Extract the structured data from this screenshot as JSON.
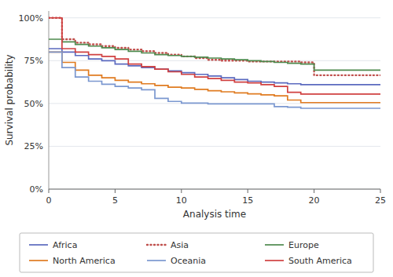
{
  "chart_data": {
    "type": "step",
    "xlabel": "Analysis time",
    "ylabel": "Survival probability",
    "xlim": [
      0,
      25
    ],
    "ylim": [
      0.0,
      1.04
    ],
    "xticks": [
      0,
      5,
      10,
      15,
      20,
      25
    ],
    "yticks": [
      {
        "value": 0.0,
        "label": "0%"
      },
      {
        "value": 0.25,
        "label": "25%"
      },
      {
        "value": 0.5,
        "label": "50%"
      },
      {
        "value": 0.75,
        "label": "75%"
      },
      {
        "value": 1.0,
        "label": "100%"
      }
    ],
    "grid": true,
    "legend": "bottom",
    "x": [
      0,
      1,
      2,
      3,
      4,
      5,
      6,
      7,
      8,
      9,
      10,
      11,
      12,
      13,
      14,
      15,
      16,
      17,
      18,
      19,
      20,
      25
    ],
    "series": [
      {
        "name": "Africa",
        "color": "#5b6abf",
        "line_style": "solid",
        "values": [
          0.82,
          0.8,
          0.78,
          0.76,
          0.75,
          0.73,
          0.72,
          0.71,
          0.7,
          0.69,
          0.68,
          0.67,
          0.66,
          0.65,
          0.64,
          0.63,
          0.625,
          0.62,
          0.615,
          0.61,
          0.61,
          0.61
        ]
      },
      {
        "name": "Asia",
        "color": "#c0504d",
        "line_style": "dotted",
        "values": [
          1.0,
          0.875,
          0.855,
          0.845,
          0.835,
          0.825,
          0.815,
          0.805,
          0.795,
          0.785,
          0.775,
          0.765,
          0.755,
          0.75,
          0.75,
          0.745,
          0.745,
          0.745,
          0.745,
          0.74,
          0.665,
          0.665
        ]
      },
      {
        "name": "Europe",
        "color": "#4e8a4e",
        "line_style": "solid",
        "values": [
          0.875,
          0.86,
          0.845,
          0.835,
          0.825,
          0.815,
          0.805,
          0.795,
          0.785,
          0.78,
          0.775,
          0.77,
          0.765,
          0.76,
          0.755,
          0.75,
          0.745,
          0.74,
          0.735,
          0.73,
          0.695,
          0.695
        ]
      },
      {
        "name": "North America",
        "color": "#e07b20",
        "line_style": "solid",
        "values": [
          0.8,
          0.74,
          0.695,
          0.665,
          0.65,
          0.635,
          0.625,
          0.615,
          0.605,
          0.595,
          0.59,
          0.582,
          0.574,
          0.568,
          0.562,
          0.556,
          0.55,
          0.545,
          0.52,
          0.505,
          0.505,
          0.505
        ]
      },
      {
        "name": "Oceania",
        "color": "#7b98d0",
        "line_style": "solid",
        "values": [
          0.8,
          0.71,
          0.655,
          0.63,
          0.612,
          0.6,
          0.59,
          0.58,
          0.53,
          0.512,
          0.502,
          0.502,
          0.498,
          0.498,
          0.498,
          0.498,
          0.498,
          0.482,
          0.478,
          0.472,
          0.472,
          0.472
        ]
      },
      {
        "name": "South America",
        "color": "#d04040",
        "line_style": "solid",
        "values": [
          1.0,
          0.82,
          0.8,
          0.785,
          0.775,
          0.76,
          0.73,
          0.715,
          0.7,
          0.685,
          0.67,
          0.655,
          0.645,
          0.635,
          0.625,
          0.62,
          0.61,
          0.6,
          0.565,
          0.555,
          0.555,
          0.555
        ]
      }
    ]
  }
}
